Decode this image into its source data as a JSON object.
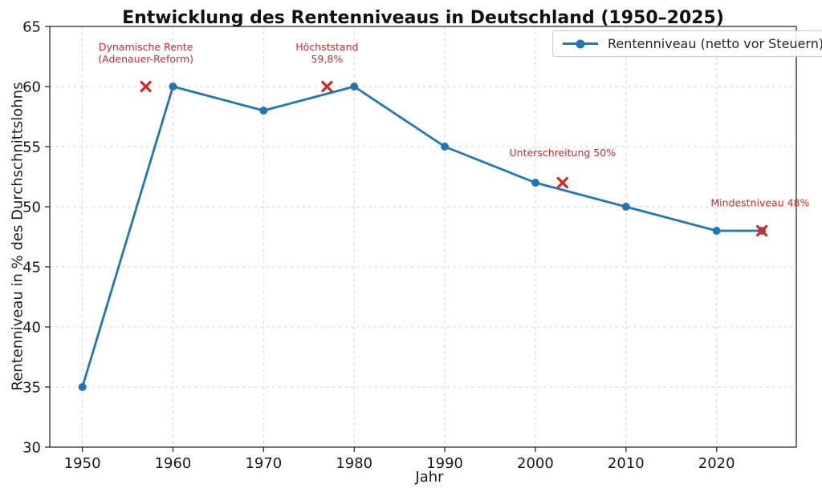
{
  "chart_data": {
    "type": "line",
    "title": "Entwicklung des Rentenniveaus in Deutschland (1950–2025)",
    "xlabel": "Jahr",
    "ylabel": "Rentenniveau in % des Durchschnittslohns",
    "xlim": [
      1946.4,
      2028.8
    ],
    "ylim": [
      30,
      65
    ],
    "x_ticks": [
      1950,
      1960,
      1970,
      1980,
      1990,
      2000,
      2010,
      2020
    ],
    "y_ticks": [
      30,
      35,
      40,
      45,
      50,
      55,
      60,
      65
    ],
    "grid": true,
    "grid_color": "#cdcdcd",
    "spine_color": "#2b2b2b",
    "legend_position": "upper right",
    "series": [
      {
        "name": "Rentenniveau (netto vor Steuern)",
        "color": "#1f77b4",
        "marker": "circle",
        "x": [
          1950,
          1960,
          1970,
          1980,
          1990,
          2000,
          2010,
          2020,
          2025
        ],
        "values": [
          35,
          60,
          58,
          60,
          55,
          52,
          50,
          48,
          48
        ]
      }
    ],
    "annotation_color": "#d62728",
    "annotations": [
      {
        "label": "Dynamische Rente\n(Adenauer-Reform)",
        "marker_x": 1957,
        "marker_y": 60,
        "text_x": 1957,
        "text_y": 63.0
      },
      {
        "label": "Höchststand\n59,8%",
        "marker_x": 1977,
        "marker_y": 60,
        "text_x": 1977,
        "text_y": 63.0
      },
      {
        "label": "Unterschreitung 50%",
        "marker_x": 2003,
        "marker_y": 52,
        "text_x": 2003,
        "text_y": 54.2
      },
      {
        "label": "Mindestniveau 48%",
        "marker_x": 2025,
        "marker_y": 48,
        "text_x": 2024.8,
        "text_y": 50.05
      }
    ]
  }
}
